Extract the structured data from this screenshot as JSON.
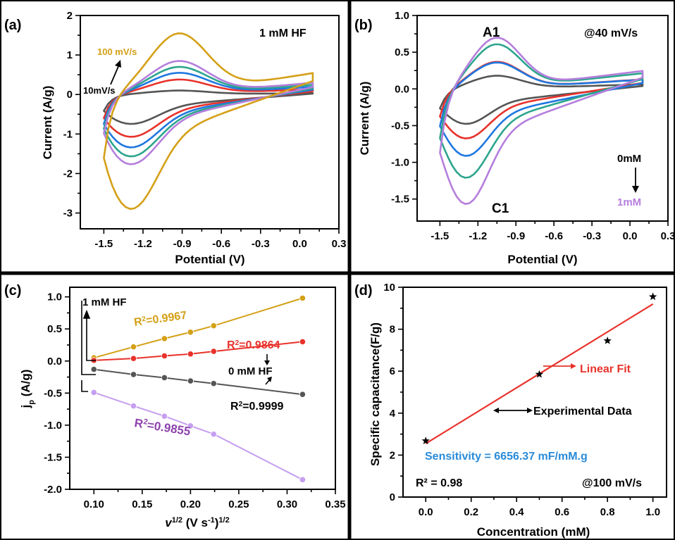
{
  "figure": {
    "colors": {
      "gold": "#d4a017",
      "purple": "#b57edc",
      "green": "#2ca58d",
      "blue": "#1f77e0",
      "red": "#e8322b",
      "gray": "#555555",
      "black": "#000000",
      "sensitivity": "#2a8bd8"
    }
  },
  "chart_data": [
    {
      "panel": "(a)",
      "type": "line",
      "annotation": "1 mM HF",
      "xlabel": "Potential (V)",
      "ylabel": "Current (A/g)",
      "xlim": [
        -1.68,
        0.3
      ],
      "ylim": [
        -3.4,
        2.0
      ],
      "xticks": [
        "-1.5",
        "-1.2",
        "-0.9",
        "-0.6",
        "-0.3",
        "0.0",
        "0.3"
      ],
      "xtick_values": [
        -1.5,
        -1.2,
        -0.9,
        -0.6,
        -0.3,
        0.0,
        0.3
      ],
      "yticks": [
        "-3",
        "-2",
        "-1",
        "0",
        "1",
        "2"
      ],
      "ytick_values": [
        -3,
        -2,
        -1,
        0,
        1,
        2
      ],
      "labels": {
        "top": "100 mV/s",
        "bottom": "10mV/s"
      },
      "series": [
        {
          "name": "10mV/s",
          "color": "gray",
          "peak_anodic": 0.1,
          "peak_cathodic": -0.75
        },
        {
          "color": "red",
          "peak_anodic": 0.38,
          "peak_cathodic": -1.08
        },
        {
          "color": "blue",
          "peak_anodic": 0.55,
          "peak_cathodic": -1.35
        },
        {
          "color": "green",
          "peak_anodic": 0.7,
          "peak_cathodic": -1.58
        },
        {
          "color": "purple",
          "peak_anodic": 0.85,
          "peak_cathodic": -1.78
        },
        {
          "name": "100 mV/s",
          "color": "gold",
          "peak_anodic": 1.55,
          "peak_cathodic": -2.92
        }
      ]
    },
    {
      "panel": "(b)",
      "type": "line",
      "annotation": "@40 mV/s",
      "xlabel": "Potential (V)",
      "ylabel": "Current (A/g)",
      "xlim": [
        -1.68,
        0.3
      ],
      "ylim": [
        -1.8,
        1.0
      ],
      "xticks": [
        "-1.5",
        "-1.2",
        "-0.9",
        "-0.6",
        "-0.3",
        "0.0",
        "0.3"
      ],
      "xtick_values": [
        -1.5,
        -1.2,
        -0.9,
        -0.6,
        -0.3,
        0.0,
        0.3
      ],
      "yticks": [
        "-1.5",
        "-1.0",
        "-0.5",
        "0.0",
        "0.5",
        "1.0"
      ],
      "ytick_values": [
        -1.5,
        -1.0,
        -0.5,
        0.0,
        0.5,
        1.0
      ],
      "peak_labels": {
        "anodic": "A1",
        "cathodic": "C1"
      },
      "labels": {
        "start": "0mM",
        "end": "1mM"
      },
      "series": [
        {
          "name": "0mM",
          "color": "gray",
          "peak_anodic": 0.18,
          "peak_cathodic": -0.48
        },
        {
          "color": "red",
          "peak_anodic": 0.37,
          "peak_cathodic": -0.68
        },
        {
          "color": "blue",
          "peak_anodic": 0.36,
          "peak_cathodic": -0.92
        },
        {
          "color": "green",
          "peak_anodic": 0.61,
          "peak_cathodic": -1.22
        },
        {
          "name": "1mM",
          "color": "purple",
          "peak_anodic": 0.7,
          "peak_cathodic": -1.58
        }
      ]
    },
    {
      "panel": "(c)",
      "type": "line",
      "xlabel": "v1/2 (V s-1)1/2",
      "ylabel": "jp (A/g)",
      "xlim": [
        0.075,
        0.35
      ],
      "ylim": [
        -2.0,
        1.15
      ],
      "xticks": [
        "0.10",
        "0.15",
        "0.20",
        "0.25",
        "0.30",
        "0.35"
      ],
      "xtick_values": [
        0.1,
        0.15,
        0.2,
        0.25,
        0.3,
        0.35
      ],
      "yticks": [
        "-2.0",
        "-1.5",
        "-1.0",
        "-0.5",
        "0.0",
        "0.5",
        "1.0"
      ],
      "ytick_values": [
        -2.0,
        -1.5,
        -1.0,
        -0.5,
        0.0,
        0.5,
        1.0
      ],
      "x": [
        0.1,
        0.141,
        0.173,
        0.2,
        0.224,
        0.316
      ],
      "labels": {
        "top": "1 mM HF",
        "bottom": "0 mM HF"
      },
      "series": [
        {
          "color": "gold",
          "r2": "0.9967",
          "values": [
            0.05,
            0.22,
            0.35,
            0.45,
            0.55,
            0.98
          ]
        },
        {
          "color": "red",
          "r2": "0.9864",
          "values": [
            0.01,
            0.04,
            0.08,
            0.11,
            0.15,
            0.3
          ]
        },
        {
          "color": "gray",
          "r2": "0.9999",
          "values": [
            -0.13,
            -0.21,
            -0.26,
            -0.31,
            -0.35,
            -0.52
          ]
        },
        {
          "color": "purple",
          "r2": "0.9855",
          "values": [
            -0.49,
            -0.7,
            -0.86,
            -1.01,
            -1.14,
            -1.85
          ]
        }
      ]
    },
    {
      "panel": "(d)",
      "type": "scatter",
      "xlabel": "Concentration (mM)",
      "ylabel": "Specific capacitance(F/g)",
      "xlim": [
        -0.1,
        1.06
      ],
      "ylim": [
        0,
        10
      ],
      "xticks": [
        "0.0",
        "0.2",
        "0.4",
        "0.6",
        "0.8",
        "1.0"
      ],
      "xtick_values": [
        0.0,
        0.2,
        0.4,
        0.6,
        0.8,
        1.0
      ],
      "yticks": [
        "0",
        "2",
        "4",
        "6",
        "8",
        "10"
      ],
      "ytick_values": [
        0,
        2,
        4,
        6,
        8,
        10
      ],
      "points": {
        "x": [
          0.0,
          0.5,
          0.8,
          1.0
        ],
        "y": [
          2.68,
          5.85,
          7.45,
          9.55
        ]
      },
      "fit": {
        "x": [
          0.0,
          1.0
        ],
        "y": [
          2.55,
          9.2
        ]
      },
      "labels": {
        "fit": "Linear Fit",
        "data": "Experimental Data",
        "sensitivity": "Sensitivity = 6656.37 mF/mM.g",
        "r2": "R² = 0.98",
        "rate": "@100 mV/s"
      }
    }
  ]
}
